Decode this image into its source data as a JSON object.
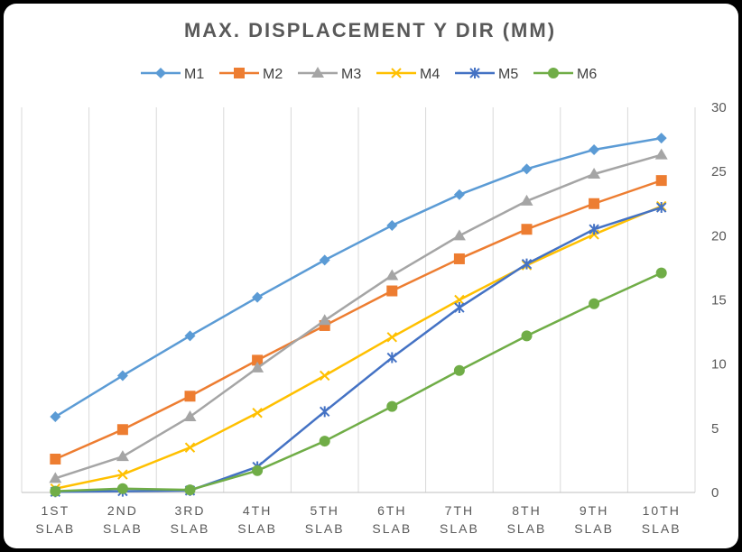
{
  "chart_data": {
    "type": "line",
    "title": "MAX. DISPLACEMENT Y DIR (MM)",
    "categories": [
      [
        "1ST",
        "SLAB"
      ],
      [
        "2ND",
        "SLAB"
      ],
      [
        "3RD",
        "SLAB"
      ],
      [
        "4TH",
        "SLAB"
      ],
      [
        "5TH",
        "SLAB"
      ],
      [
        "6TH",
        "SLAB"
      ],
      [
        "7TH",
        "SLAB"
      ],
      [
        "8TH",
        "SLAB"
      ],
      [
        "9TH",
        "SLAB"
      ],
      [
        "10TH",
        "SLAB"
      ]
    ],
    "ylim": [
      0,
      30
    ],
    "yticks": [
      0,
      5,
      10,
      15,
      20,
      25,
      30
    ],
    "grid": "vertical",
    "legend": "top",
    "series": [
      {
        "name": "M1",
        "color": "#5B9BD5",
        "marker": "diamond",
        "values": [
          5.9,
          9.1,
          12.2,
          15.2,
          18.1,
          20.8,
          23.2,
          25.2,
          26.7,
          27.6
        ]
      },
      {
        "name": "M2",
        "color": "#ED7D31",
        "marker": "square",
        "values": [
          2.6,
          4.9,
          7.5,
          10.3,
          13.0,
          15.7,
          18.2,
          20.5,
          22.5,
          24.3
        ]
      },
      {
        "name": "M3",
        "color": "#A5A5A5",
        "marker": "triangle",
        "values": [
          1.1,
          2.8,
          5.9,
          9.7,
          13.4,
          16.9,
          20.0,
          22.7,
          24.8,
          26.3
        ]
      },
      {
        "name": "M4",
        "color": "#FFC000",
        "marker": "x",
        "values": [
          0.3,
          1.4,
          3.5,
          6.2,
          9.1,
          12.1,
          15.0,
          17.7,
          20.1,
          22.3
        ]
      },
      {
        "name": "M5",
        "color": "#4472C4",
        "marker": "star",
        "values": [
          0.05,
          0.1,
          0.15,
          2.0,
          6.3,
          10.5,
          14.4,
          17.8,
          20.5,
          22.2
        ]
      },
      {
        "name": "M6",
        "color": "#70AD47",
        "marker": "circle",
        "values": [
          0.1,
          0.3,
          0.2,
          1.7,
          4.0,
          6.7,
          9.5,
          12.2,
          14.7,
          17.1
        ]
      }
    ]
  }
}
